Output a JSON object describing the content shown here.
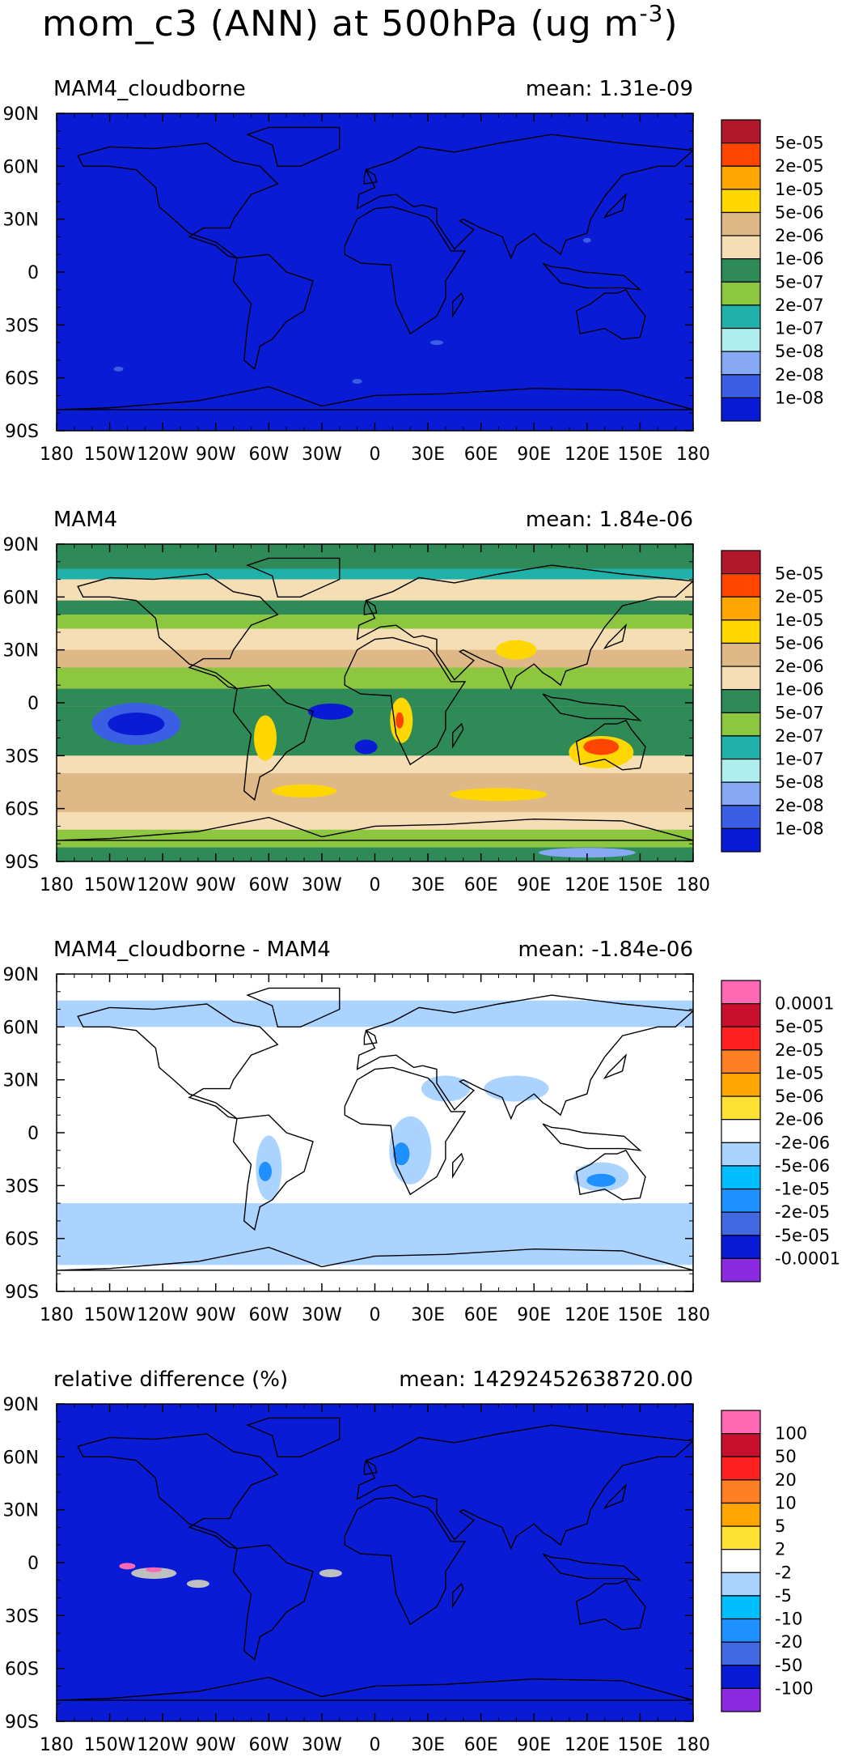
{
  "figure": {
    "title": "mom_c3 (ANN) at 500hPa (ug m",
    "title_exp": "-3",
    "title_close": ")"
  },
  "axes": {
    "x_ticks": [
      "180",
      "150W",
      "120W",
      "90W",
      "60W",
      "30W",
      "0",
      "30E",
      "60E",
      "90E",
      "120E",
      "150E",
      "180"
    ],
    "y_ticks": [
      "90N",
      "60N",
      "30N",
      "0",
      "30S",
      "60S",
      "90S"
    ]
  },
  "chart_data": [
    {
      "type": "heatmap",
      "title": "MAM4_cloudborne",
      "mean_label": "mean:  1.31e-09",
      "xlim": [
        -180,
        180
      ],
      "ylim": [
        -90,
        90
      ],
      "background": "#0a1bd6",
      "levels": [
        "5e-05",
        "2e-05",
        "1e-05",
        "5e-06",
        "2e-06",
        "1e-06",
        "5e-07",
        "2e-07",
        "1e-07",
        "5e-08",
        "2e-08",
        "1e-08"
      ],
      "colors": [
        "#b2182b",
        "#ff4500",
        "#ffa500",
        "#ffd700",
        "#deb887",
        "#f5deb3",
        "#2e8b57",
        "#8dc63f",
        "#20b2aa",
        "#afeeee",
        "#87a8f5",
        "#3a5fe5",
        "#0a1bd6"
      ]
    },
    {
      "type": "heatmap",
      "title": "MAM4",
      "mean_label": "mean:  1.84e-06",
      "xlim": [
        -180,
        180
      ],
      "ylim": [
        -90,
        90
      ],
      "background": "#deb887",
      "levels": [
        "5e-05",
        "2e-05",
        "1e-05",
        "5e-06",
        "2e-06",
        "1e-06",
        "5e-07",
        "2e-07",
        "1e-07",
        "5e-08",
        "2e-08",
        "1e-08"
      ],
      "colors": [
        "#b2182b",
        "#ff4500",
        "#ffa500",
        "#ffd700",
        "#deb887",
        "#f5deb3",
        "#2e8b57",
        "#8dc63f",
        "#20b2aa",
        "#afeeee",
        "#87a8f5",
        "#3a5fe5",
        "#0a1bd6"
      ]
    },
    {
      "type": "heatmap",
      "title": "MAM4_cloudborne - MAM4",
      "mean_label": "mean:  -1.84e-06",
      "xlim": [
        -180,
        180
      ],
      "ylim": [
        -90,
        90
      ],
      "background": "#ffffff",
      "levels": [
        "0.0001",
        "5e-05",
        "2e-05",
        "1e-05",
        "5e-06",
        "2e-06",
        "-2e-06",
        "-5e-06",
        "-1e-05",
        "-2e-05",
        "-5e-05",
        "-0.0001"
      ],
      "colors": [
        "#ff69b4",
        "#c8102e",
        "#ff2020",
        "#ff7f24",
        "#ffa500",
        "#ffe135",
        "#ffffff",
        "#aad4ff",
        "#00bfff",
        "#1e90ff",
        "#4169e1",
        "#0a1bd6",
        "#8a2be2"
      ]
    },
    {
      "type": "heatmap",
      "title": "relative difference (%)",
      "mean_label": "mean:  14292452638720.00",
      "xlim": [
        -180,
        180
      ],
      "ylim": [
        -90,
        90
      ],
      "background": "#0a1bd6",
      "levels": [
        "100",
        "50",
        "20",
        "10",
        "5",
        "2",
        "-2",
        "-5",
        "-10",
        "-20",
        "-50",
        "-100"
      ],
      "colors": [
        "#ff69b4",
        "#c8102e",
        "#ff2020",
        "#ff7f24",
        "#ffa500",
        "#ffe135",
        "#ffffff",
        "#aad4ff",
        "#00bfff",
        "#1e90ff",
        "#4169e1",
        "#0a1bd6",
        "#8a2be2"
      ]
    }
  ]
}
